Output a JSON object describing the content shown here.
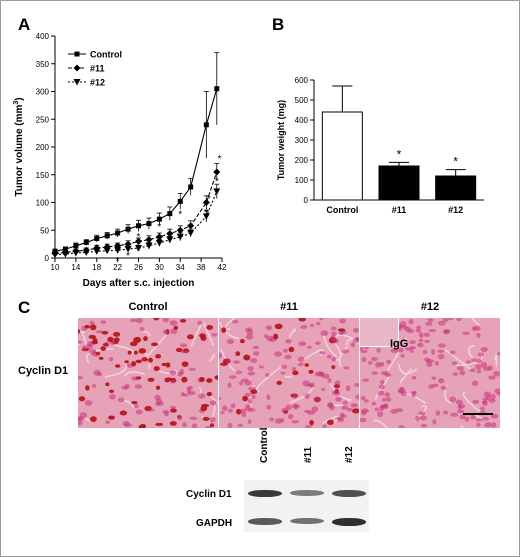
{
  "panels": {
    "a": "A",
    "b": "B",
    "c": "C"
  },
  "chart_data": [
    {
      "panel": "A",
      "type": "line",
      "xlabel": "Days after s.c. injection",
      "ylabel": "Tumor volume (mm",
      "ylabel_superscript": "3",
      "ylabel_close": ")",
      "x": [
        10,
        12,
        14,
        16,
        18,
        20,
        22,
        24,
        26,
        28,
        30,
        32,
        34,
        36,
        39,
        41
      ],
      "xticks": [
        10,
        14,
        18,
        22,
        26,
        30,
        34,
        38,
        42
      ],
      "yticks": [
        0,
        50,
        100,
        150,
        200,
        250,
        300,
        350,
        400
      ],
      "xlim": [
        10,
        42
      ],
      "ylim": [
        0,
        400
      ],
      "series": [
        {
          "name": "Control",
          "marker": "square",
          "values": [
            12,
            16,
            22,
            28,
            35,
            40,
            45,
            52,
            58,
            62,
            70,
            80,
            102,
            128,
            240,
            305
          ],
          "errors": [
            4,
            4,
            5,
            5,
            6,
            6,
            7,
            8,
            10,
            10,
            11,
            12,
            14,
            15,
            60,
            65
          ]
        },
        {
          "name": "#11",
          "marker": "diamond",
          "values": [
            8,
            10,
            12,
            14,
            18,
            20,
            22,
            25,
            30,
            33,
            38,
            44,
            50,
            58,
            100,
            155
          ],
          "errors": [
            3,
            3,
            4,
            4,
            5,
            5,
            5,
            6,
            6,
            7,
            7,
            8,
            8,
            9,
            12,
            15
          ]
        },
        {
          "name": "#12",
          "marker": "triangle-down",
          "values": [
            6,
            7,
            9,
            10,
            12,
            13,
            14,
            16,
            18,
            22,
            27,
            33,
            38,
            45,
            75,
            120
          ],
          "errors": [
            3,
            3,
            3,
            4,
            4,
            4,
            5,
            5,
            5,
            6,
            6,
            6,
            7,
            7,
            10,
            13
          ]
        }
      ],
      "significance": [
        {
          "x": 22,
          "y": -4
        },
        {
          "x": 24,
          "y": 5
        },
        {
          "x": 26,
          "y": 14
        },
        {
          "x": 28,
          "y": 22
        },
        {
          "x": 30,
          "y": 31
        },
        {
          "x": 32,
          "y": 40
        },
        {
          "x": 34,
          "y": 49
        },
        {
          "x": 36,
          "y": 58
        },
        {
          "x": 39,
          "y": 84
        },
        {
          "x": 39.5,
          "y": 108
        },
        {
          "x": 41,
          "y": 140
        },
        {
          "x": 41.5,
          "y": 180
        },
        {
          "x": 26,
          "y": 40
        },
        {
          "x": 30,
          "y": 58
        },
        {
          "x": 34,
          "y": 80
        }
      ],
      "significance_mark": "*",
      "legend_position": "top-left"
    },
    {
      "panel": "B",
      "type": "bar",
      "ylabel": "Tumor weight (mg)",
      "categories": [
        "Control",
        "#11",
        "#12"
      ],
      "values": [
        440,
        170,
        120
      ],
      "errors": [
        130,
        18,
        32
      ],
      "fills": [
        "#ffffff",
        "#000000",
        "#000000"
      ],
      "significant": [
        false,
        true,
        true
      ],
      "significance_mark": "*",
      "ylim": [
        0,
        600
      ],
      "yticks": [
        0,
        100,
        200,
        300,
        400,
        500,
        600
      ]
    }
  ],
  "panel_c": {
    "columns": [
      "Control",
      "#11",
      "#12"
    ],
    "row_label": "Cyclin D1",
    "inset_label": "IgG",
    "western": {
      "lanes": [
        "Control",
        "#11",
        "#12"
      ],
      "rows": [
        {
          "label": "Cyclin D1",
          "intensity": [
            0.85,
            0.55,
            0.75
          ]
        },
        {
          "label": "GAPDH",
          "intensity": [
            0.7,
            0.6,
            0.9
          ]
        }
      ]
    }
  },
  "colors": {
    "stain_background": "#e6a3b8",
    "stain_nuclei": "#c8327a",
    "positive_nuclei": "#b8161a"
  }
}
